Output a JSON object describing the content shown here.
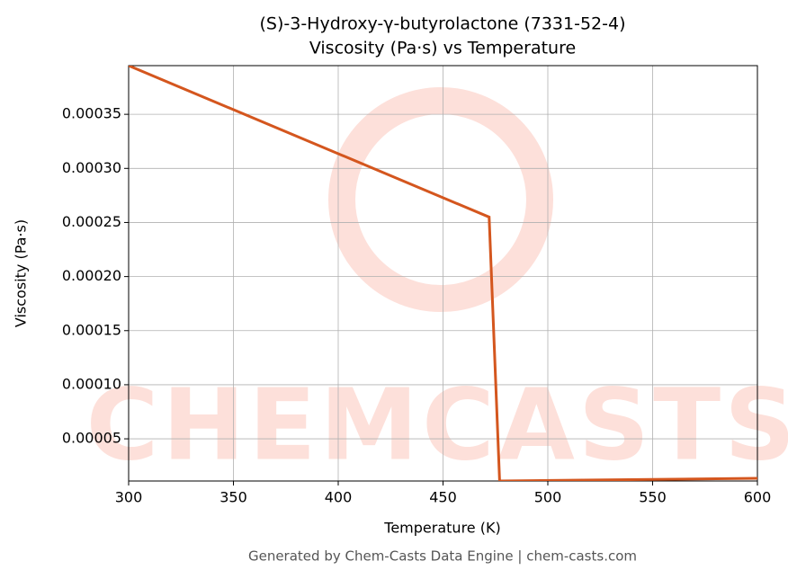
{
  "chart_data": {
    "type": "line",
    "title": "(S)-3-Hydroxy-γ-butyrolactone (7331-52-4)",
    "subtitle": "Viscosity (Pa·s) vs Temperature",
    "x_label": "Temperature (K)",
    "y_label": "Viscosity (Pa·s)",
    "watermark": "CHEMCASTS",
    "footer": "Generated by Chem-Casts Data Engine | chem-casts.com",
    "x": [
      300,
      472,
      477,
      600
    ],
    "series": [
      {
        "name": "Viscosity",
        "color": "#d4561e",
        "values": [
          0.000395,
          0.000255,
          1.1e-05,
          1.35e-05
        ]
      }
    ],
    "xlim": [
      300,
      600
    ],
    "xticks": [
      300,
      350,
      400,
      450,
      500,
      550,
      600
    ],
    "ylim": [
      1.1e-05,
      0.000395
    ],
    "yticks": [
      {
        "value": 5e-05,
        "label": "0.00005"
      },
      {
        "value": 0.0001,
        "label": "0.00010"
      },
      {
        "value": 0.00015,
        "label": "0.00015"
      },
      {
        "value": 0.0002,
        "label": "0.00020"
      },
      {
        "value": 0.00025,
        "label": "0.00025"
      },
      {
        "value": 0.0003,
        "label": "0.00030"
      },
      {
        "value": 0.00035,
        "label": "0.00035"
      }
    ],
    "grid": true
  }
}
